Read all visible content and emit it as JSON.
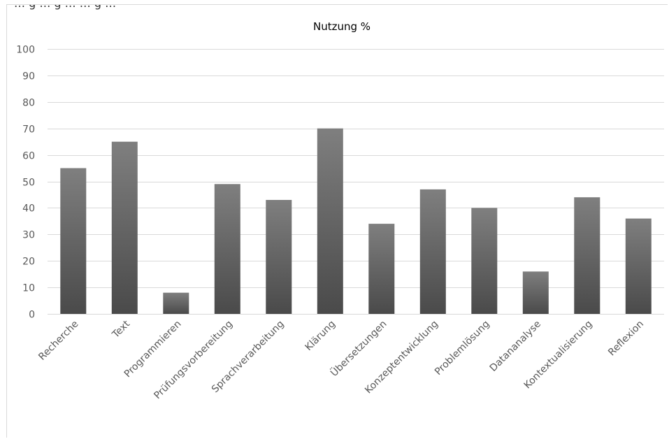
{
  "header_fragment": "… g … g … … g …",
  "chart_data": {
    "type": "bar",
    "title": "Nutzung %",
    "categories": [
      "Recherche",
      "Text",
      "Programmieren",
      "Prüfungsvorbereitung",
      "Sprachverarbeitung",
      "Klärung",
      "Übersetzungen",
      "Konzeptentwicklung",
      "Problemlösung",
      "Datananalyse",
      "Kontextualisierung",
      "Reflexion"
    ],
    "values": [
      55,
      65,
      8,
      49,
      43,
      70,
      34,
      47,
      40,
      16,
      44,
      36
    ],
    "ylim": [
      0,
      100
    ],
    "yticks": [
      0,
      10,
      20,
      30,
      40,
      50,
      60,
      70,
      80,
      90,
      100
    ],
    "grid": true,
    "legend": "none",
    "colors": {
      "bar_top": "#7f7f7f",
      "bar_bottom": "#4a4a4a",
      "gridline": "#d9d9d9",
      "label": "#595959"
    }
  }
}
